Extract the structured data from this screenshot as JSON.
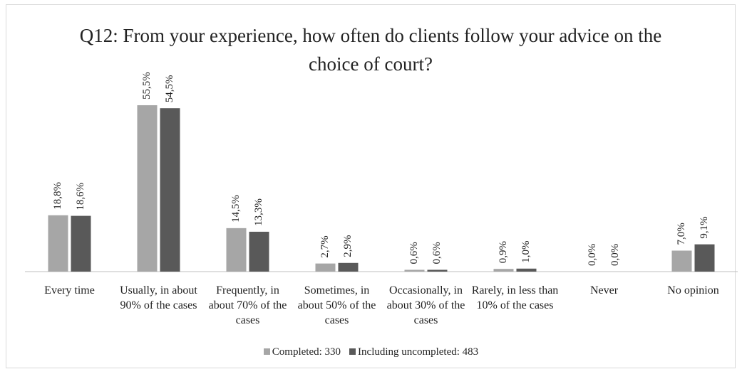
{
  "chart_data": {
    "type": "bar",
    "title": "Q12: From your experience, how often do clients follow your advice on the choice of court?",
    "categories": [
      "Every time",
      "Usually, in about 90% of the cases",
      "Frequently, in about 70% of the cases",
      "Sometimes, in about 50% of the cases",
      "Occasionally, in about 30% of the cases",
      "Rarely, in less than 10% of the cases",
      "Never",
      "No opinion"
    ],
    "series": [
      {
        "name": "Completed: 330",
        "color": "#a6a6a6",
        "values": [
          18.8,
          55.5,
          14.5,
          2.7,
          0.6,
          0.9,
          0.0,
          7.0
        ],
        "value_labels": [
          "18,8%",
          "55,5%",
          "14,5%",
          "2,7%",
          "0,6%",
          "0,9%",
          "0,0%",
          "7,0%"
        ]
      },
      {
        "name": "Including uncompleted: 483",
        "color": "#595959",
        "values": [
          18.6,
          54.5,
          13.3,
          2.9,
          0.6,
          1.0,
          0.0,
          9.1
        ],
        "value_labels": [
          "18,6%",
          "54,5%",
          "13,3%",
          "2,9%",
          "0,6%",
          "1,0%",
          "0,0%",
          "9,1%"
        ]
      }
    ],
    "ylim": [
      0,
      60
    ],
    "legend": "bottom"
  }
}
